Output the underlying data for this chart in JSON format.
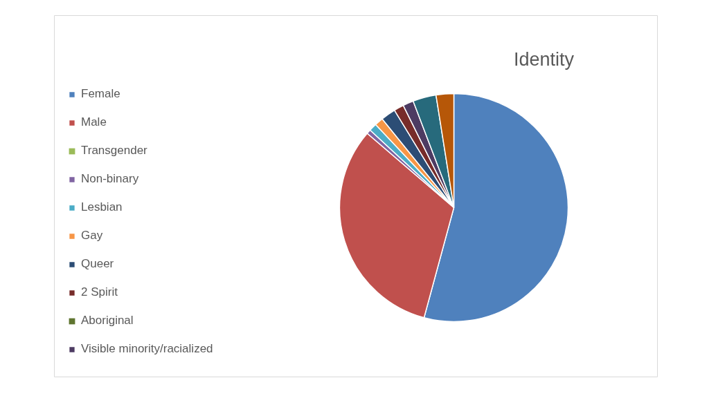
{
  "chart_data": {
    "type": "pie",
    "title": "Identity",
    "categories": [
      "Female",
      "Male",
      "Transgender",
      "Non-binary",
      "Lesbian",
      "Gay",
      "Queer",
      "2 Spirit",
      "Aboriginal",
      "Visible minority/racialized",
      null,
      null
    ],
    "values": [
      54.2,
      32.1,
      0,
      0.6,
      1.1,
      1.2,
      2.1,
      1.4,
      0,
      1.5,
      3.3,
      2.5
    ],
    "colors": [
      "#4f81bd",
      "#c0504d",
      "#9bbb59",
      "#8064a2",
      "#4bacc6",
      "#f79646",
      "#2c4d75",
      "#772c2a",
      "#5f7530",
      "#4d3b62",
      "#276a7c",
      "#b65708"
    ],
    "legend": "left"
  }
}
